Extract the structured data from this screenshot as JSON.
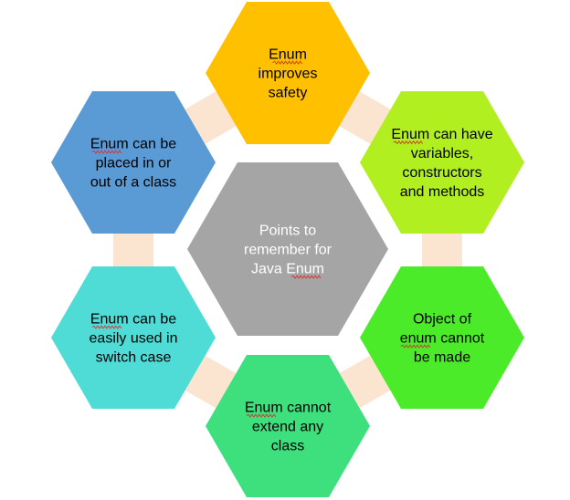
{
  "colors": {
    "connector": "#fbe5d0",
    "center_text": "#ffffff",
    "outer_text": "#000000",
    "spell_underline": "#e03030"
  },
  "center": {
    "lines": [
      "Points to",
      "remember for",
      "Java Enum"
    ],
    "color": "#a5a5a5"
  },
  "items": [
    {
      "lines": [
        "Enum",
        "improves",
        "safety"
      ],
      "color": "#ffc000"
    },
    {
      "lines": [
        "Enum can have",
        "variables,",
        "constructors",
        "and methods"
      ],
      "color": "#b2ef20"
    },
    {
      "lines": [
        "Object of",
        "enum cannot",
        "be made"
      ],
      "color": "#4ceb2a"
    },
    {
      "lines": [
        "Enum cannot",
        "extend any",
        "class"
      ],
      "color": "#3ee07d"
    },
    {
      "lines": [
        "Enum can be",
        "easily used in",
        "switch case"
      ],
      "color": "#4fdcd7"
    },
    {
      "lines": [
        "Enum can be",
        "placed in or",
        "out of a class"
      ],
      "color": "#5b9bd5"
    }
  ]
}
